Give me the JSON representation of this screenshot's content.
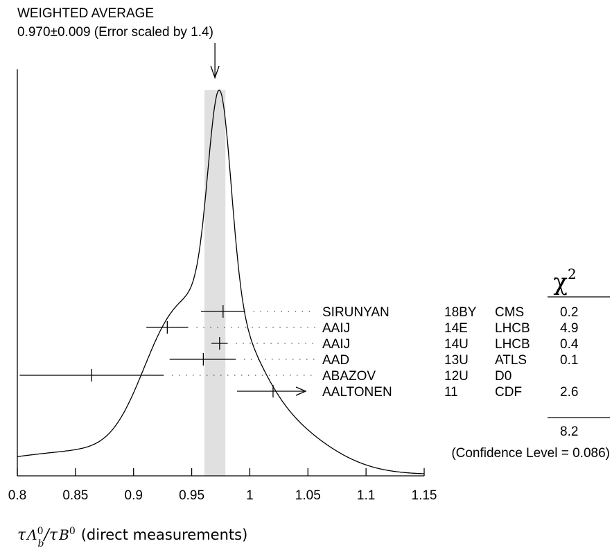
{
  "header": {
    "title": "WEIGHTED AVERAGE",
    "subtitle": "0.970±0.009 (Error scaled by 1.4)"
  },
  "chart_data": {
    "type": "ideogram",
    "weighted_average": {
      "value": 0.97,
      "error": 0.009,
      "error_scale": 1.4
    },
    "xlim": [
      0.8,
      1.15
    ],
    "xticks": [
      "0.8",
      "0.85",
      "0.9",
      "0.95",
      "1",
      "1.05",
      "1.1",
      "1.15"
    ],
    "xticks_values": [
      0.8,
      0.85,
      0.9,
      0.95,
      1.0,
      1.05,
      1.1,
      1.15
    ],
    "xlabel": "τΛb0/τB0 (direct measurements)",
    "chi2_header": "χ",
    "chi2_header_sup": "2",
    "measurements": [
      {
        "author": "SIRUNYAN",
        "year": "18BY",
        "experiment": "CMS",
        "value": 0.977,
        "low": 0.958,
        "high": 0.996,
        "chi2": "0.2"
      },
      {
        "author": "AAIJ",
        "year": "14E",
        "experiment": "LHCB",
        "value": 0.929,
        "low": 0.911,
        "high": 0.947,
        "chi2": "4.9"
      },
      {
        "author": "AAIJ",
        "year": "14U",
        "experiment": "LHCB",
        "value": 0.974,
        "low": 0.967,
        "high": 0.981,
        "chi2": "0.4"
      },
      {
        "author": "AAD",
        "year": "13U",
        "experiment": "ATLS",
        "value": 0.96,
        "low": 0.931,
        "high": 0.988,
        "chi2": "0.1"
      },
      {
        "author": "ABAZOV",
        "year": "12U",
        "experiment": "D0",
        "value": 0.864,
        "low": 0.802,
        "high": 0.926,
        "chi2": ""
      },
      {
        "author": "AALTONEN",
        "year": "11",
        "experiment": "CDF",
        "value": 1.02,
        "low": 0.989,
        "high": 1.052,
        "chi2": "2.6"
      }
    ],
    "chi2_total": "8.2",
    "confidence_level": "(Confidence Level = 0.086)"
  }
}
